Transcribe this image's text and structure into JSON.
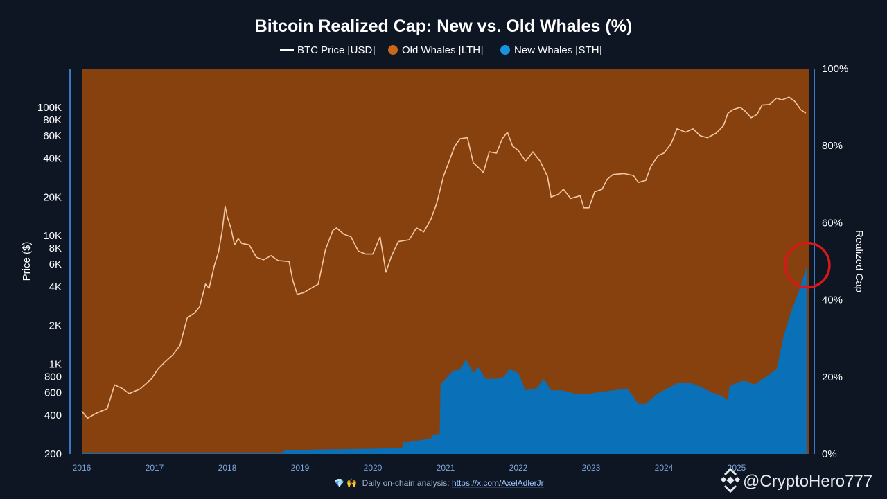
{
  "chart_data": {
    "type": "area",
    "title": "Bitcoin Realized Cap: New vs. Old Whales (%)",
    "legend": [
      {
        "label": "BTC Price [USD]",
        "kind": "line",
        "color": "#ffffff"
      },
      {
        "label": "Old Whales [LTH]",
        "kind": "dot",
        "color": "#c9661a"
      },
      {
        "label": "New Whales [STH]",
        "kind": "dot",
        "color": "#1a93dd"
      }
    ],
    "colors": {
      "background": "#0e1624",
      "old_whales_area": "#86410f",
      "new_whales_area": "#0a70b8",
      "price_line": "#f6c7a4",
      "axis_line": "#3d78c0",
      "highlight_circle": "#d81818"
    },
    "left_axis": {
      "label": "Price ($)",
      "scale": "log",
      "range": [
        200,
        200000
      ],
      "ticks": [
        {
          "value": 200,
          "label": "200"
        },
        {
          "value": 400,
          "label": "400"
        },
        {
          "value": 600,
          "label": "600"
        },
        {
          "value": 800,
          "label": "800"
        },
        {
          "value": 1000,
          "label": "1K"
        },
        {
          "value": 2000,
          "label": "2K"
        },
        {
          "value": 4000,
          "label": "4K"
        },
        {
          "value": 6000,
          "label": "6K"
        },
        {
          "value": 8000,
          "label": "8K"
        },
        {
          "value": 10000,
          "label": "10K"
        },
        {
          "value": 20000,
          "label": "20K"
        },
        {
          "value": 40000,
          "label": "40K"
        },
        {
          "value": 60000,
          "label": "60K"
        },
        {
          "value": 80000,
          "label": "80K"
        },
        {
          "value": 100000,
          "label": "100K"
        }
      ]
    },
    "right_axis": {
      "label": "Realized Cap",
      "range": [
        0,
        100
      ],
      "ticks": [
        {
          "value": 0,
          "label": "0%"
        },
        {
          "value": 20,
          "label": "20%"
        },
        {
          "value": 40,
          "label": "40%"
        },
        {
          "value": 60,
          "label": "60%"
        },
        {
          "value": 80,
          "label": "80%"
        },
        {
          "value": 100,
          "label": "100%"
        }
      ]
    },
    "x_axis": {
      "range": [
        2016.0,
        2026.0
      ],
      "ticks": [
        {
          "value": 2016,
          "label": "2016"
        },
        {
          "value": 2017,
          "label": "2017"
        },
        {
          "value": 2018,
          "label": "2018"
        },
        {
          "value": 2019,
          "label": "2019"
        },
        {
          "value": 2020,
          "label": "2020"
        },
        {
          "value": 2021,
          "label": "2021"
        },
        {
          "value": 2022,
          "label": "2022"
        },
        {
          "value": 2023,
          "label": "2023"
        },
        {
          "value": 2024,
          "label": "2024"
        },
        {
          "value": 2025,
          "label": "2025"
        }
      ]
    },
    "series": [
      {
        "name": "BTC Price [USD]",
        "axis": "left",
        "points": [
          [
            2016.0,
            430
          ],
          [
            2016.08,
            380
          ],
          [
            2016.2,
            415
          ],
          [
            2016.35,
            450
          ],
          [
            2016.45,
            690
          ],
          [
            2016.55,
            650
          ],
          [
            2016.65,
            590
          ],
          [
            2016.8,
            640
          ],
          [
            2016.95,
            760
          ],
          [
            2017.05,
            920
          ],
          [
            2017.15,
            1050
          ],
          [
            2017.25,
            1180
          ],
          [
            2017.35,
            1400
          ],
          [
            2017.45,
            2300
          ],
          [
            2017.55,
            2500
          ],
          [
            2017.62,
            2800
          ],
          [
            2017.7,
            4200
          ],
          [
            2017.75,
            3900
          ],
          [
            2017.82,
            5800
          ],
          [
            2017.88,
            7500
          ],
          [
            2017.93,
            11000
          ],
          [
            2017.97,
            17000
          ],
          [
            2018.0,
            14000
          ],
          [
            2018.05,
            11500
          ],
          [
            2018.1,
            8500
          ],
          [
            2018.15,
            9500
          ],
          [
            2018.2,
            8700
          ],
          [
            2018.3,
            8500
          ],
          [
            2018.4,
            6800
          ],
          [
            2018.5,
            6500
          ],
          [
            2018.6,
            7000
          ],
          [
            2018.7,
            6400
          ],
          [
            2018.85,
            6300
          ],
          [
            2018.9,
            4500
          ],
          [
            2018.96,
            3500
          ],
          [
            2019.05,
            3600
          ],
          [
            2019.15,
            3900
          ],
          [
            2019.25,
            4200
          ],
          [
            2019.35,
            7800
          ],
          [
            2019.45,
            11000
          ],
          [
            2019.5,
            11500
          ],
          [
            2019.6,
            10300
          ],
          [
            2019.7,
            9800
          ],
          [
            2019.8,
            7600
          ],
          [
            2019.9,
            7200
          ],
          [
            2020.0,
            7200
          ],
          [
            2020.1,
            9800
          ],
          [
            2020.18,
            5200
          ],
          [
            2020.25,
            6800
          ],
          [
            2020.35,
            9000
          ],
          [
            2020.5,
            9300
          ],
          [
            2020.6,
            11500
          ],
          [
            2020.7,
            10700
          ],
          [
            2020.8,
            13500
          ],
          [
            2020.88,
            18000
          ],
          [
            2020.97,
            29000
          ],
          [
            2021.05,
            38000
          ],
          [
            2021.12,
            49000
          ],
          [
            2021.2,
            57000
          ],
          [
            2021.3,
            58000
          ],
          [
            2021.38,
            37000
          ],
          [
            2021.45,
            34000
          ],
          [
            2021.52,
            31000
          ],
          [
            2021.6,
            45000
          ],
          [
            2021.7,
            44000
          ],
          [
            2021.78,
            57000
          ],
          [
            2021.85,
            64000
          ],
          [
            2021.92,
            50000
          ],
          [
            2022.0,
            46000
          ],
          [
            2022.1,
            38000
          ],
          [
            2022.2,
            45000
          ],
          [
            2022.3,
            38000
          ],
          [
            2022.4,
            29000
          ],
          [
            2022.45,
            20000
          ],
          [
            2022.55,
            21000
          ],
          [
            2022.62,
            23000
          ],
          [
            2022.72,
            19500
          ],
          [
            2022.85,
            20500
          ],
          [
            2022.9,
            16500
          ],
          [
            2022.97,
            16500
          ],
          [
            2023.05,
            22000
          ],
          [
            2023.15,
            23000
          ],
          [
            2023.22,
            27500
          ],
          [
            2023.3,
            30000
          ],
          [
            2023.45,
            30500
          ],
          [
            2023.58,
            29500
          ],
          [
            2023.65,
            26000
          ],
          [
            2023.75,
            27000
          ],
          [
            2023.82,
            34500
          ],
          [
            2023.92,
            42000
          ],
          [
            2024.0,
            44000
          ],
          [
            2024.1,
            52000
          ],
          [
            2024.18,
            68000
          ],
          [
            2024.3,
            64000
          ],
          [
            2024.4,
            68000
          ],
          [
            2024.5,
            60000
          ],
          [
            2024.6,
            58000
          ],
          [
            2024.72,
            63000
          ],
          [
            2024.82,
            72000
          ],
          [
            2024.88,
            90000
          ],
          [
            2024.95,
            96000
          ],
          [
            2025.05,
            100000
          ],
          [
            2025.12,
            93000
          ],
          [
            2025.2,
            83000
          ],
          [
            2025.28,
            88000
          ],
          [
            2025.35,
            104000
          ],
          [
            2025.45,
            105000
          ],
          [
            2025.55,
            118000
          ],
          [
            2025.62,
            114000
          ],
          [
            2025.72,
            120000
          ],
          [
            2025.8,
            111000
          ],
          [
            2025.88,
            96000
          ],
          [
            2025.95,
            90000
          ]
        ]
      },
      {
        "name": "New Whales [STH]",
        "axis": "right",
        "unit": "%",
        "points": [
          [
            2016.0,
            0.2
          ],
          [
            2018.75,
            0.3
          ],
          [
            2018.8,
            1.0
          ],
          [
            2019.5,
            1.2
          ],
          [
            2020.4,
            1.5
          ],
          [
            2020.42,
            3.0
          ],
          [
            2020.5,
            3.0
          ],
          [
            2020.52,
            3.2
          ],
          [
            2020.8,
            4.0
          ],
          [
            2020.82,
            5.0
          ],
          [
            2020.92,
            5.2
          ],
          [
            2020.93,
            18.0
          ],
          [
            2021.0,
            19.5
          ],
          [
            2021.1,
            21.5
          ],
          [
            2021.2,
            22.0
          ],
          [
            2021.28,
            24.5
          ],
          [
            2021.38,
            21.0
          ],
          [
            2021.45,
            22.5
          ],
          [
            2021.55,
            19.5
          ],
          [
            2021.7,
            19.5
          ],
          [
            2021.8,
            20.0
          ],
          [
            2021.88,
            22.0
          ],
          [
            2022.0,
            21.0
          ],
          [
            2022.1,
            16.5
          ],
          [
            2022.25,
            17.0
          ],
          [
            2022.35,
            19.5
          ],
          [
            2022.45,
            16.5
          ],
          [
            2022.6,
            16.5
          ],
          [
            2022.8,
            15.5
          ],
          [
            2022.95,
            15.5
          ],
          [
            2023.1,
            16.0
          ],
          [
            2023.3,
            16.5
          ],
          [
            2023.5,
            17.0
          ],
          [
            2023.65,
            13.0
          ],
          [
            2023.75,
            13.0
          ],
          [
            2023.9,
            15.5
          ],
          [
            2024.05,
            17.0
          ],
          [
            2024.2,
            18.5
          ],
          [
            2024.35,
            18.5
          ],
          [
            2024.5,
            17.5
          ],
          [
            2024.65,
            16.0
          ],
          [
            2024.8,
            15.0
          ],
          [
            2024.88,
            14.0
          ],
          [
            2024.9,
            17.5
          ],
          [
            2025.0,
            18.5
          ],
          [
            2025.1,
            19.0
          ],
          [
            2025.25,
            18.0
          ],
          [
            2025.4,
            20.0
          ],
          [
            2025.55,
            22.0
          ],
          [
            2025.65,
            31.0
          ],
          [
            2025.75,
            37.0
          ],
          [
            2025.85,
            42.0
          ],
          [
            2025.92,
            46.0
          ],
          [
            2025.97,
            49.0
          ]
        ]
      },
      {
        "name": "Old Whales [LTH]",
        "axis": "right",
        "unit": "%",
        "note": "complement of New Whales share (100% minus STH share)"
      }
    ],
    "annotations": [
      {
        "type": "circle",
        "x": 2025.97,
        "y_percent": 49,
        "color": "#d81818",
        "meaning": "highlight of recent New Whales share"
      }
    ]
  },
  "footer": {
    "icons": "💎 🙌",
    "prefix": "Daily on-chain analysis: ",
    "link": "https://x.com/AxelAdlerJr"
  },
  "watermark": {
    "text": "@CryptoHero777",
    "icon": "binance-diamond-icon"
  }
}
